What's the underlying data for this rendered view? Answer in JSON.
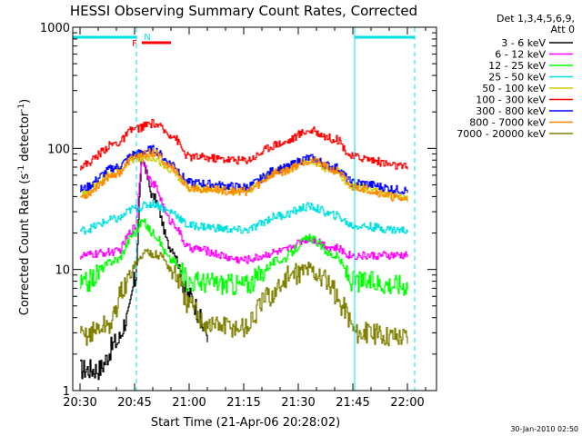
{
  "chart_data": {
    "type": "line",
    "title": "HESSI Observing Summary Count Rates, Corrected",
    "xlabel": "Start Time (21-Apr-06 20:28:02)",
    "ylabel_prefix": "Corrected Count Rate (s",
    "ylabel_exp1": "-1",
    "ylabel_mid": " detector",
    "ylabel_exp2": "-1",
    "ylabel_suffix": ")",
    "y_scale": "log",
    "ylim": [
      1,
      1000
    ],
    "xlim": [
      "20:28",
      "22:08"
    ],
    "x_ticks": [
      "20:30",
      "20:45",
      "21:00",
      "21:15",
      "21:30",
      "21:45",
      "22:00"
    ],
    "y_ticks": [
      "1",
      "10",
      "100",
      "1000"
    ],
    "footer_timestamp": "30-Jan-2010 02:50",
    "legend_header": [
      "Det 1,3,4,5,6,9,",
      "Att 0"
    ],
    "legend_placement": "right",
    "flags": [
      {
        "label": "N",
        "color": "#00e0e0",
        "start": "20:46",
        "end": "20:50"
      },
      {
        "label": "F",
        "color": "#ff0000",
        "start": "20:47",
        "end": "20:55"
      }
    ],
    "night_intervals": [
      {
        "color": "#00e0e0",
        "start": "20:28",
        "end": "20:45:30"
      },
      {
        "color": "#00e0e0",
        "start": "21:45:30",
        "end": "22:02"
      }
    ],
    "vertical_markers": [
      {
        "time": "20:28",
        "style": "solid",
        "color": "#00e0e0"
      },
      {
        "time": "20:45:30",
        "style": "dashed",
        "color": "#00e0e0"
      },
      {
        "time": "21:45:30",
        "style": "solid",
        "color": "#00e0e0"
      },
      {
        "time": "22:02",
        "style": "dashed",
        "color": "#00e0e0"
      }
    ],
    "series": [
      {
        "name": "3 - 6 keV",
        "color": "#000000",
        "x": [
          "20:30",
          "20:35",
          "20:40",
          "20:43",
          "20:45",
          "20:47",
          "20:50",
          "20:55",
          "21:00",
          "21:05"
        ],
        "y": [
          1.5,
          1.5,
          2.5,
          4,
          8,
          80,
          40,
          15,
          6,
          3
        ]
      },
      {
        "name": "6 - 12 keV",
        "color": "#ff00ff",
        "x": [
          "20:30",
          "20:40",
          "20:45",
          "20:47",
          "20:50",
          "20:55",
          "21:00",
          "21:15",
          "21:25",
          "21:33",
          "21:40",
          "21:45",
          "22:00"
        ],
        "y": [
          13,
          14,
          22,
          80,
          50,
          25,
          15,
          12,
          14,
          18,
          15,
          13,
          13
        ]
      },
      {
        "name": "12 - 25 keV",
        "color": "#00ff00",
        "x": [
          "20:30",
          "20:40",
          "20:45",
          "20:47",
          "20:50",
          "20:55",
          "21:00",
          "21:15",
          "21:25",
          "21:33",
          "21:40",
          "21:45",
          "22:00"
        ],
        "y": [
          7.5,
          12,
          20,
          25,
          20,
          12,
          8,
          7.5,
          12,
          18,
          13,
          8,
          7.5
        ]
      },
      {
        "name": "25 - 50 keV",
        "color": "#00e0e0",
        "x": [
          "20:30",
          "20:40",
          "20:45",
          "20:50",
          "20:55",
          "21:00",
          "21:15",
          "21:25",
          "21:33",
          "21:40",
          "21:45",
          "22:00"
        ],
        "y": [
          21,
          26,
          32,
          35,
          30,
          23,
          21,
          28,
          33,
          28,
          23,
          21
        ]
      },
      {
        "name": "50 - 100 keV",
        "color": "#cccc00",
        "x": [
          "20:30",
          "20:40",
          "20:45",
          "20:50",
          "20:55",
          "21:00",
          "21:15",
          "21:25",
          "21:33",
          "21:40",
          "21:45",
          "22:00"
        ],
        "y": [
          42,
          65,
          82,
          85,
          65,
          47,
          45,
          65,
          78,
          65,
          48,
          40
        ]
      },
      {
        "name": "100 - 300 keV",
        "color": "#ff0000",
        "x": [
          "20:30",
          "20:40",
          "20:45",
          "20:50",
          "20:55",
          "21:00",
          "21:15",
          "21:25",
          "21:33",
          "21:40",
          "21:45",
          "22:00"
        ],
        "y": [
          72,
          110,
          145,
          160,
          130,
          85,
          80,
          110,
          140,
          120,
          85,
          70
        ]
      },
      {
        "name": "300 - 800 keV",
        "color": "#0000ff",
        "x": [
          "20:30",
          "20:40",
          "20:45",
          "20:50",
          "20:55",
          "21:00",
          "21:15",
          "21:25",
          "21:33",
          "21:40",
          "21:45",
          "22:00"
        ],
        "y": [
          46,
          70,
          90,
          98,
          75,
          52,
          48,
          68,
          83,
          70,
          52,
          45
        ]
      },
      {
        "name": "800 - 7000 keV",
        "color": "#ff8800",
        "x": [
          "20:30",
          "20:40",
          "20:45",
          "20:50",
          "20:55",
          "21:00",
          "21:15",
          "21:25",
          "21:33",
          "21:40",
          "21:45",
          "22:00"
        ],
        "y": [
          40,
          62,
          85,
          92,
          70,
          47,
          44,
          64,
          80,
          66,
          48,
          38
        ]
      },
      {
        "name": "7000 - 20000 keV",
        "color": "#808000",
        "x": [
          "20:30",
          "20:38",
          "20:42",
          "20:45",
          "20:48",
          "20:52",
          "20:56",
          "21:00",
          "21:05",
          "21:15",
          "21:22",
          "21:28",
          "21:33",
          "21:38",
          "21:42",
          "21:46",
          "22:00"
        ],
        "y": [
          2.8,
          3.5,
          7,
          11,
          14,
          13,
          9,
          5,
          3.5,
          3.3,
          6,
          9,
          10,
          8,
          5,
          3,
          2.8
        ]
      }
    ]
  }
}
